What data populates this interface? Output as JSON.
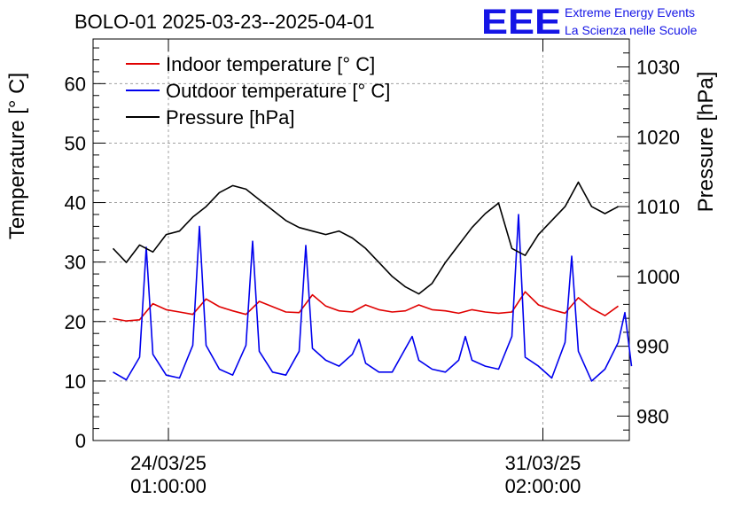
{
  "header": {
    "title": "BOLO-01 2025-03-23--2025-04-01",
    "logo_letters": "EEE",
    "logo_line1": "Extreme Energy Events",
    "logo_line2": "La Scienza nelle Scuole"
  },
  "colors": {
    "indoor": "#e00000",
    "outdoor": "#0000ee",
    "pressure": "#000000",
    "logo": "#1515e6",
    "grid": "#a0a0a0"
  },
  "chart_data": {
    "type": "line",
    "title": "BOLO-01 2025-03-23--2025-04-01",
    "ylabel": "Temperature [° C]",
    "y2label": "Pressure [hPa]",
    "xlabel": "",
    "ylim": [
      0,
      67.5
    ],
    "y2lim": [
      976.5,
      1034
    ],
    "yticks": [
      0,
      10,
      20,
      30,
      40,
      50,
      60
    ],
    "y2ticks": [
      980,
      990,
      1000,
      1010,
      1020,
      1030
    ],
    "xlim": [
      "2025-03-22 15:00",
      "2025-04-01 17:00"
    ],
    "xticks": [
      {
        "x": "2025-03-24 01:00",
        "date": "24/03/25",
        "time": "01:00:00"
      },
      {
        "x": "2025-03-31 02:00",
        "date": "31/03/25",
        "time": "02:00:00"
      }
    ],
    "grid": true,
    "legend_position": "top-left",
    "legend": [
      "Indoor temperature [° C]",
      "Outdoor temperature [° C]",
      "Pressure [hPa]"
    ],
    "series": [
      {
        "name": "Indoor temperature [° C]",
        "axis": "left",
        "x": [
          "2025-03-23 00:00",
          "2025-03-23 06:00",
          "2025-03-23 12:00",
          "2025-03-23 18:00",
          "2025-03-24 00:00",
          "2025-03-24 06:00",
          "2025-03-24 12:00",
          "2025-03-24 18:00",
          "2025-03-25 00:00",
          "2025-03-25 06:00",
          "2025-03-25 12:00",
          "2025-03-25 18:00",
          "2025-03-26 00:00",
          "2025-03-26 06:00",
          "2025-03-26 12:00",
          "2025-03-26 18:00",
          "2025-03-27 00:00",
          "2025-03-27 06:00",
          "2025-03-27 12:00",
          "2025-03-27 18:00",
          "2025-03-28 00:00",
          "2025-03-28 06:00",
          "2025-03-28 12:00",
          "2025-03-28 18:00",
          "2025-03-29 00:00",
          "2025-03-29 06:00",
          "2025-03-29 12:00",
          "2025-03-29 18:00",
          "2025-03-30 00:00",
          "2025-03-30 06:00",
          "2025-03-30 12:00",
          "2025-03-30 18:00",
          "2025-03-31 00:00",
          "2025-03-31 06:00",
          "2025-03-31 12:00",
          "2025-03-31 18:00",
          "2025-04-01 00:00",
          "2025-04-01 06:00",
          "2025-04-01 12:00"
        ],
        "values": [
          20.5,
          20.1,
          20.3,
          23.0,
          22.0,
          21.6,
          21.2,
          23.8,
          22.5,
          21.8,
          21.2,
          23.4,
          22.5,
          21.6,
          21.5,
          24.5,
          22.6,
          21.8,
          21.6,
          22.8,
          22.0,
          21.6,
          21.8,
          22.8,
          22.0,
          21.8,
          21.4,
          22.0,
          21.6,
          21.4,
          21.6,
          25.0,
          22.8,
          22.0,
          21.4,
          24.0,
          22.2,
          21.0,
          22.6
        ]
      },
      {
        "name": "Outdoor temperature [° C]",
        "axis": "left",
        "x": [
          "2025-03-23 00:00",
          "2025-03-23 06:00",
          "2025-03-23 12:00",
          "2025-03-23 15:00",
          "2025-03-23 18:00",
          "2025-03-24 00:00",
          "2025-03-24 06:00",
          "2025-03-24 12:00",
          "2025-03-24 15:00",
          "2025-03-24 18:00",
          "2025-03-25 00:00",
          "2025-03-25 06:00",
          "2025-03-25 12:00",
          "2025-03-25 15:00",
          "2025-03-25 18:00",
          "2025-03-26 00:00",
          "2025-03-26 06:00",
          "2025-03-26 12:00",
          "2025-03-26 15:00",
          "2025-03-26 18:00",
          "2025-03-27 00:00",
          "2025-03-27 06:00",
          "2025-03-27 12:00",
          "2025-03-27 15:00",
          "2025-03-27 18:00",
          "2025-03-28 00:00",
          "2025-03-28 06:00",
          "2025-03-28 12:00",
          "2025-03-28 15:00",
          "2025-03-28 18:00",
          "2025-03-29 00:00",
          "2025-03-29 06:00",
          "2025-03-29 12:00",
          "2025-03-29 15:00",
          "2025-03-29 18:00",
          "2025-03-30 00:00",
          "2025-03-30 06:00",
          "2025-03-30 12:00",
          "2025-03-30 15:00",
          "2025-03-30 18:00",
          "2025-03-31 00:00",
          "2025-03-31 06:00",
          "2025-03-31 12:00",
          "2025-03-31 15:00",
          "2025-03-31 18:00",
          "2025-04-01 00:00",
          "2025-04-01 06:00",
          "2025-04-01 12:00",
          "2025-04-01 15:00",
          "2025-04-01 18:00"
        ],
        "values": [
          11.5,
          10.2,
          14.0,
          32.5,
          14.5,
          11.0,
          10.5,
          16.0,
          36.0,
          16.0,
          12.0,
          11.0,
          16.0,
          33.5,
          15.0,
          11.5,
          11.0,
          15.0,
          32.8,
          15.5,
          13.5,
          12.5,
          14.5,
          17.0,
          13.0,
          11.5,
          11.5,
          15.5,
          17.5,
          13.5,
          12.0,
          11.5,
          13.5,
          17.5,
          13.5,
          12.5,
          12.0,
          17.5,
          38.0,
          14.0,
          12.5,
          10.5,
          16.5,
          31.0,
          15.0,
          10.0,
          12.0,
          16.5,
          21.5,
          12.5
        ]
      },
      {
        "name": "Pressure [hPa]",
        "axis": "right",
        "x": [
          "2025-03-23 00:00",
          "2025-03-23 06:00",
          "2025-03-23 12:00",
          "2025-03-23 18:00",
          "2025-03-24 00:00",
          "2025-03-24 06:00",
          "2025-03-24 12:00",
          "2025-03-24 18:00",
          "2025-03-25 00:00",
          "2025-03-25 06:00",
          "2025-03-25 12:00",
          "2025-03-25 18:00",
          "2025-03-26 00:00",
          "2025-03-26 06:00",
          "2025-03-26 12:00",
          "2025-03-26 18:00",
          "2025-03-27 00:00",
          "2025-03-27 06:00",
          "2025-03-27 12:00",
          "2025-03-27 18:00",
          "2025-03-28 00:00",
          "2025-03-28 06:00",
          "2025-03-28 12:00",
          "2025-03-28 18:00",
          "2025-03-29 00:00",
          "2025-03-29 06:00",
          "2025-03-29 12:00",
          "2025-03-29 18:00",
          "2025-03-30 00:00",
          "2025-03-30 06:00",
          "2025-03-30 12:00",
          "2025-03-30 18:00",
          "2025-03-31 00:00",
          "2025-03-31 06:00",
          "2025-03-31 12:00",
          "2025-03-31 18:00",
          "2025-04-01 00:00",
          "2025-04-01 06:00",
          "2025-04-01 12:00"
        ],
        "values": [
          1004.0,
          1002.0,
          1004.5,
          1003.5,
          1006.0,
          1006.5,
          1008.5,
          1010.0,
          1012.0,
          1013.0,
          1012.5,
          1011.0,
          1009.5,
          1008.0,
          1007.0,
          1006.5,
          1006.0,
          1006.5,
          1005.5,
          1004.0,
          1002.0,
          1000.0,
          998.5,
          997.5,
          999.0,
          1002.0,
          1004.5,
          1007.0,
          1009.0,
          1010.5,
          1004.0,
          1003.0,
          1006.0,
          1008.0,
          1010.0,
          1013.5,
          1010.0,
          1009.0,
          1010.0
        ]
      }
    ]
  }
}
